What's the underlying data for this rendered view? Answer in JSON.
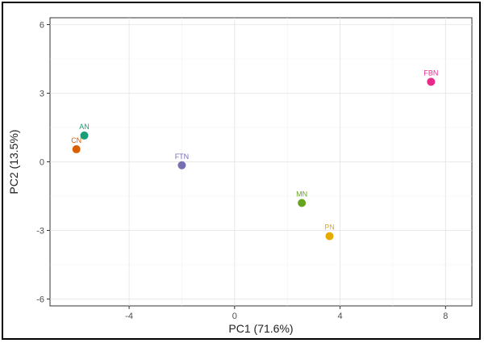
{
  "chart_data": {
    "type": "scatter",
    "title": "",
    "xlabel": "PC1 (71.6%)",
    "ylabel": "PC2 (13.5%)",
    "xlim": [
      -7,
      9
    ],
    "ylim": [
      -6.3,
      6.3
    ],
    "xticks": [
      -4,
      0,
      4,
      8
    ],
    "yticks": [
      -6,
      -3,
      0,
      3,
      6
    ],
    "grid": true,
    "points": [
      {
        "label": "AN",
        "x": -5.7,
        "y": 1.15,
        "color": "#1b9e77"
      },
      {
        "label": "CN",
        "x": -6.0,
        "y": 0.55,
        "color": "#d95f02"
      },
      {
        "label": "FTN",
        "x": -2.0,
        "y": -0.15,
        "color": "#7570b3"
      },
      {
        "label": "FBN",
        "x": 7.45,
        "y": 3.5,
        "color": "#e7298a"
      },
      {
        "label": "MN",
        "x": 2.55,
        "y": -1.8,
        "color": "#66a61e"
      },
      {
        "label": "PN",
        "x": 3.6,
        "y": -3.25,
        "color": "#e6ab02"
      }
    ]
  }
}
